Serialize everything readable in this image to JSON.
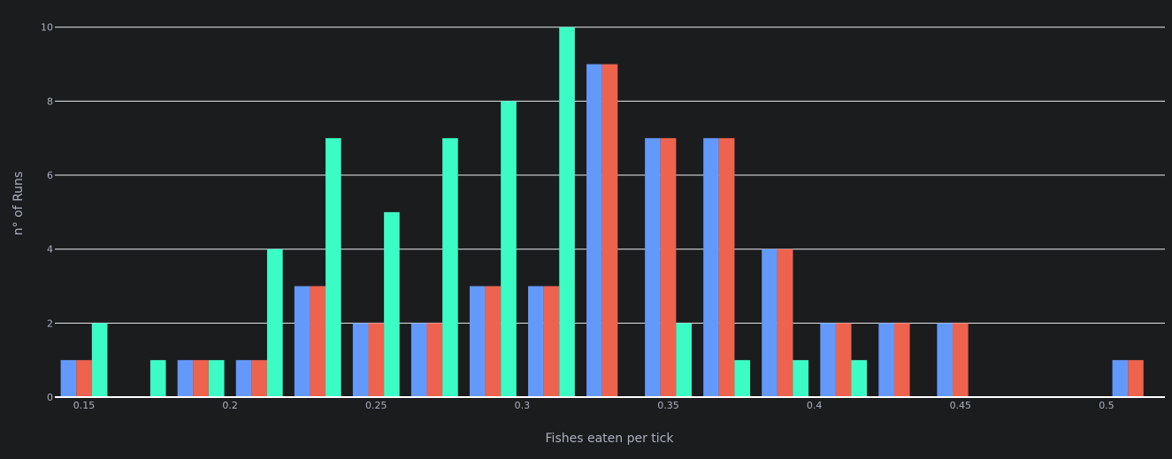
{
  "chart_data": {
    "type": "bar",
    "xlabel": "Fishes eaten per tick",
    "ylabel": "n° of Runs",
    "xlim": [
      0.14,
      0.52
    ],
    "ylim": [
      0,
      10.4
    ],
    "bin_width": 0.02,
    "x_ticks": [
      0.15,
      0.2,
      0.25,
      0.3,
      0.35,
      0.4,
      0.45,
      0.5
    ],
    "x_tick_labels": [
      "0.15",
      "0.2",
      "0.25",
      "0.3",
      "0.35",
      "0.4",
      "0.45",
      "0.5"
    ],
    "y_ticks": [
      0,
      2,
      4,
      6,
      8,
      10
    ],
    "y_tick_labels": [
      "0",
      "2",
      "4",
      "6",
      "8",
      "10"
    ],
    "grid": true,
    "legend": "none",
    "bin_centers": [
      0.15,
      0.17,
      0.19,
      0.21,
      0.23,
      0.25,
      0.27,
      0.29,
      0.31,
      0.33,
      0.35,
      0.37,
      0.39,
      0.41,
      0.43,
      0.45,
      0.47,
      0.49,
      0.51
    ],
    "series": [
      {
        "color": "#6399fb",
        "values": [
          1,
          0,
          1,
          1,
          3,
          2,
          2,
          3,
          3,
          9,
          7,
          7,
          4,
          2,
          2,
          2,
          0,
          0,
          1
        ]
      },
      {
        "color": "#ee634e",
        "values": [
          1,
          0,
          1,
          1,
          3,
          2,
          2,
          3,
          3,
          9,
          7,
          7,
          4,
          2,
          2,
          2,
          0,
          0,
          1
        ]
      },
      {
        "color": "#3cfcc6",
        "values": [
          2,
          1,
          1,
          4,
          7,
          5,
          7,
          8,
          10,
          0,
          2,
          1,
          1,
          1,
          0,
          0,
          0,
          0,
          0
        ]
      }
    ]
  },
  "colors": {
    "background": "#1b1c1e",
    "grid": "#e9ecef",
    "text": "#aab1bd"
  }
}
